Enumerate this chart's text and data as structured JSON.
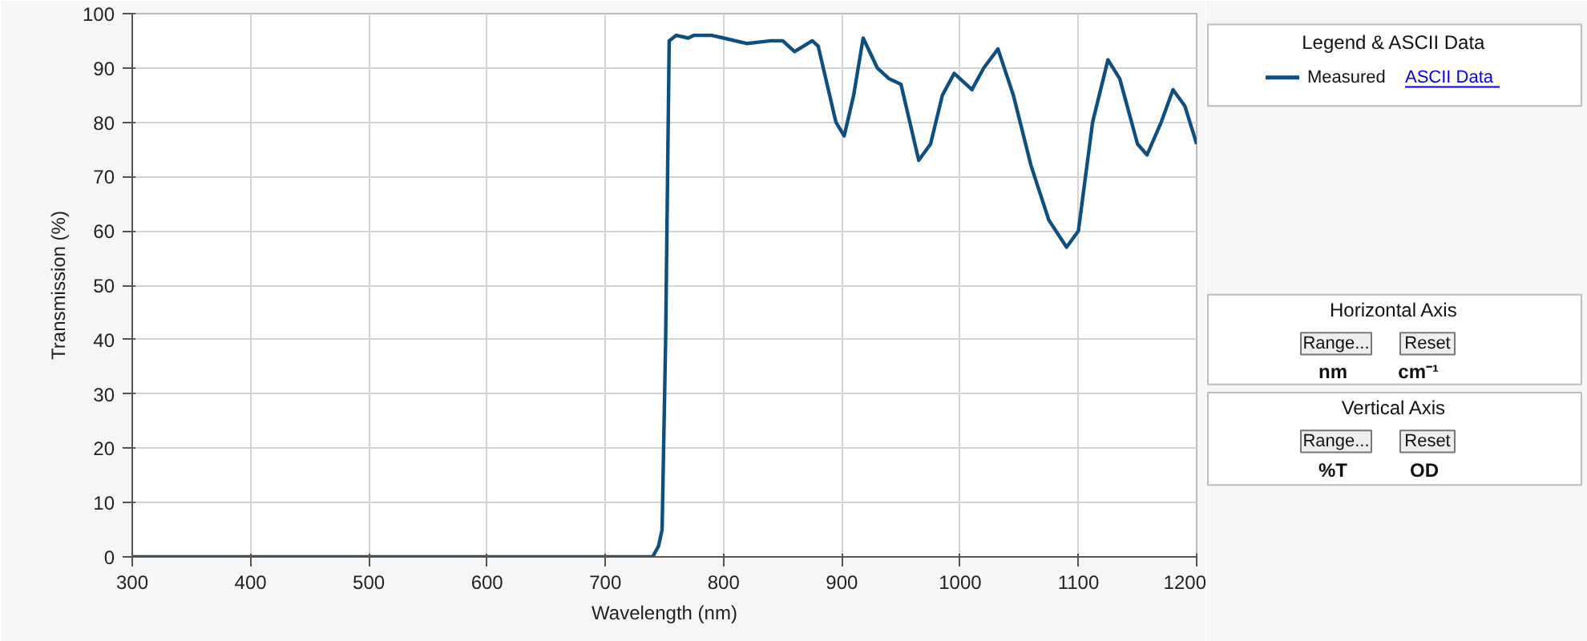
{
  "chart_data": [
    {
      "type": "line",
      "xlabel": "Wavelength (nm)",
      "ylabel": "Transmission (%)",
      "legend_title": "Legend & ASCII Data",
      "legend": "right",
      "grid": true,
      "line_style": "solid",
      "marker": "none",
      "xlim": [
        300,
        1200
      ],
      "xticks": [
        300,
        400,
        500,
        600,
        700,
        800,
        900,
        1000,
        1100,
        1200
      ],
      "ylim": [
        0,
        100
      ],
      "yticks": [
        0,
        10,
        20,
        30,
        40,
        50,
        60,
        70,
        80,
        90,
        100
      ],
      "series": [
        {
          "name": "Measured",
          "color": "#0e4f7f",
          "x": [
            300,
            400,
            500,
            600,
            700,
            740,
            745,
            748,
            751,
            754,
            760,
            770,
            775,
            790,
            800,
            820,
            840,
            850,
            860,
            875,
            880,
            895,
            902,
            910,
            918,
            930,
            940,
            950,
            965,
            975,
            985,
            995,
            1010,
            1020,
            1032,
            1045,
            1060,
            1075,
            1090,
            1100,
            1112,
            1125,
            1135,
            1150,
            1158,
            1170,
            1180,
            1190,
            1200
          ],
          "values": [
            0,
            0,
            0,
            0,
            0,
            0,
            2,
            5,
            40,
            95,
            96,
            95.5,
            96,
            96,
            95.5,
            94.5,
            95,
            95,
            93,
            95,
            94,
            80,
            77.5,
            85,
            95.5,
            90,
            88,
            87,
            73,
            76,
            85,
            89,
            86,
            90,
            93.5,
            85,
            72,
            62,
            57,
            60,
            80,
            91.5,
            88,
            76,
            74,
            80,
            86,
            83,
            76
          ]
        }
      ]
    },
    {
      "type": "other",
      "annotations": [
        "ASCII Data",
        "Horizontal Axis",
        "Range...",
        "Reset",
        "nm",
        "cm⁻¹",
        "Vertical Axis",
        "Range...",
        "Reset",
        "%T",
        "OD"
      ]
    }
  ]
}
